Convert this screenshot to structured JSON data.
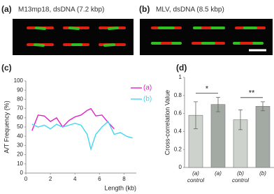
{
  "panels": [
    {
      "label": "(a)",
      "title": "M13mp18, dsDNA (7.2 kbp)"
    },
    {
      "label": "(b)",
      "title": "MLV, dsDNA (8.5 kbp)"
    }
  ],
  "chart_data": [
    {
      "type": "line",
      "panel_label": "(c)",
      "y_label": "A/T Frequency (%)",
      "x_label": "Length (kb)",
      "x": [
        0.5,
        1.0,
        1.5,
        2.0,
        2.5,
        3.0,
        3.5,
        4.0,
        4.5,
        5.0,
        5.3,
        5.7,
        6.2,
        6.7,
        7.2,
        7.7,
        8.2,
        8.7
      ],
      "series": [
        {
          "name": "(a)",
          "color": "#e020c8",
          "values": [
            46,
            63,
            62,
            56,
            60,
            50,
            57,
            61,
            63,
            68,
            70,
            62,
            63,
            55,
            48,
            null,
            null,
            null
          ]
        },
        {
          "name": "(b)",
          "color": "#40d8f0",
          "values": [
            53,
            50,
            52,
            48,
            53,
            50,
            52,
            54,
            52,
            42,
            26,
            42,
            50,
            56,
            42,
            44,
            40,
            38
          ]
        }
      ],
      "xlim": [
        0,
        9
      ],
      "xticks": [
        0,
        2,
        4,
        6,
        8
      ],
      "ylim": [
        0,
        100
      ],
      "yticks": [
        0,
        10,
        20,
        30,
        40,
        50,
        60,
        70,
        80,
        90,
        100
      ],
      "legend": "upper right"
    },
    {
      "type": "bar",
      "panel_label": "(d)",
      "y_label": "Cross-correlation Value",
      "categories": [
        [
          "(a)",
          "control"
        ],
        [
          "(a)"
        ],
        [
          "(b)",
          "control"
        ],
        [
          "(b)"
        ]
      ],
      "values": [
        0.58,
        0.7,
        0.53,
        0.68
      ],
      "errors": [
        0.15,
        0.08,
        0.11,
        0.05
      ],
      "colors": [
        "#cdd2cd",
        "#a3aaa3",
        "#cdd2cd",
        "#a3aaa3"
      ],
      "significance": [
        "*",
        "**"
      ],
      "ylim": [
        0,
        1
      ],
      "yticks": [
        0,
        0.2,
        0.4,
        0.6,
        0.8,
        1
      ]
    }
  ]
}
